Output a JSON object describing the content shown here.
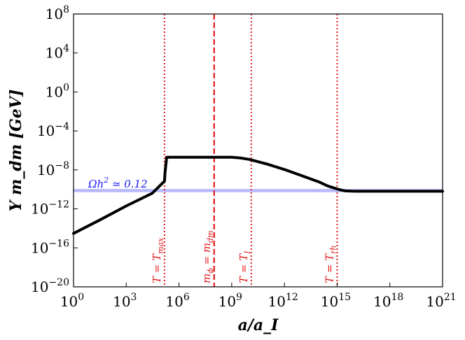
{
  "chart_data": {
    "type": "line",
    "xscale": "log",
    "yscale": "log",
    "xlim": [
      1,
      1e+21
    ],
    "ylim": [
      1e-20,
      100000000.0
    ],
    "xticks": [
      {
        "value": 1,
        "base": "10",
        "exp": "0"
      },
      {
        "value": 1000.0,
        "base": "10",
        "exp": "3"
      },
      {
        "value": 1000000.0,
        "base": "10",
        "exp": "6"
      },
      {
        "value": 1000000000.0,
        "base": "10",
        "exp": "9"
      },
      {
        "value": 1000000000000.0,
        "base": "10",
        "exp": "12"
      },
      {
        "value": 1000000000000000.0,
        "base": "10",
        "exp": "15"
      },
      {
        "value": 1e+18,
        "base": "10",
        "exp": "18"
      },
      {
        "value": 1e+21,
        "base": "10",
        "exp": "21"
      }
    ],
    "yticks": [
      {
        "value": 100000000.0,
        "base": "10",
        "exp": "8"
      },
      {
        "value": 10000.0,
        "base": "10",
        "exp": "4"
      },
      {
        "value": 1,
        "base": "10",
        "exp": "0"
      },
      {
        "value": 0.0001,
        "base": "10",
        "exp": "−4"
      },
      {
        "value": 1e-08,
        "base": "10",
        "exp": "−8"
      },
      {
        "value": 1e-12,
        "base": "10",
        "exp": "−12"
      },
      {
        "value": 1e-16,
        "base": "10",
        "exp": "−16"
      },
      {
        "value": 1e-20,
        "base": "10",
        "exp": "−20"
      }
    ],
    "xlabel": "a/a_I",
    "ylabel": "Y m_dm [GeV]",
    "series": [
      {
        "color": "#000000",
        "x": [
          1,
          30.0,
          1000.0,
          30000.0,
          150000.0,
          160000.0,
          200000.0,
          1000000.0,
          100000000.0,
          300000000.0,
          1000000000.0,
          3000000000.0,
          10000000000.0,
          100000000000.0,
          1000000000000.0,
          10000000000000.0,
          100000000000000.0,
          300000000000000.0,
          1000000000000000.0,
          2000000000000000.0,
          3000000000000000.0,
          1e+16,
          1e+18,
          1e+21
        ],
        "y": [
          3e-15,
          7e-14,
          2e-12,
          4e-11,
          7e-10,
          5e-09,
          2e-07,
          2e-07,
          2e-07,
          2e-07,
          2e-07,
          1.7e-07,
          1.2e-07,
          4e-08,
          1.1e-08,
          2.5e-09,
          5.5e-10,
          2.2e-10,
          1.1e-10,
          8e-11,
          7e-11,
          6.5e-11,
          6.5e-11,
          6.5e-11
        ]
      }
    ],
    "hband": {
      "y_low": 5.2e-11,
      "y_high": 1.1e-10,
      "color": "#8080ff",
      "label_base": "Ωh",
      "label_exp": "2",
      "label_rest": " ≃ 0.12",
      "label_x": 30.0
    },
    "vlines": [
      {
        "x": 150000.0,
        "style": "dotted",
        "label_main": "T = T",
        "label_sub": "max",
        "color": "#e31a1c"
      },
      {
        "x": 100000000.0,
        "style": "dashed",
        "label_main": "m",
        "label_sub": "ϕ",
        "label_mid": " = m",
        "label_sub2": "dm",
        "color": "#e31a1c"
      },
      {
        "x": 13000000000.0,
        "style": "dotted",
        "label_main": "T = T",
        "label_sub": "I",
        "color": "#e31a1c"
      },
      {
        "x": 1000000000000000.0,
        "style": "dotted",
        "label_main": "T = T",
        "label_sub": "rh",
        "color": "#e31a1c"
      }
    ],
    "grid": false,
    "legend": "none"
  }
}
